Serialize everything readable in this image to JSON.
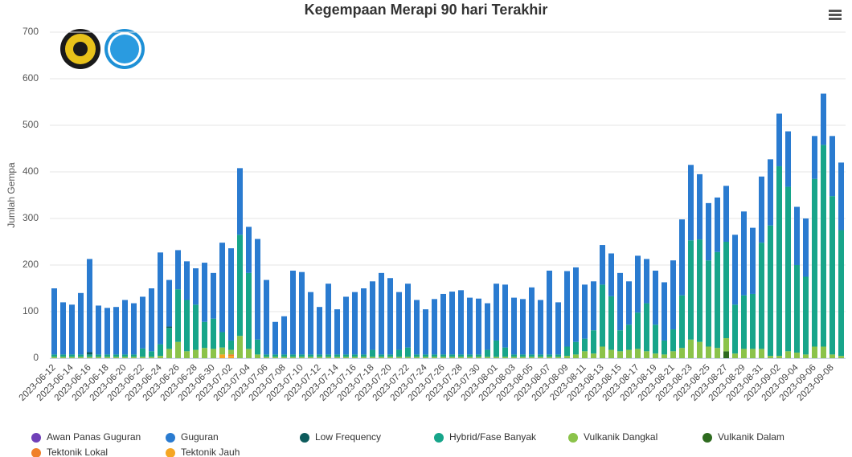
{
  "chart_data": {
    "type": "stacked-bar",
    "title": "Kegempaan Merapi 90 hari Terakhir",
    "y_label": "Jumlah Gempa",
    "ylim": [
      0,
      700
    ],
    "yticks": [
      0,
      100,
      200,
      300,
      400,
      500,
      600,
      700
    ],
    "grid": true,
    "categories": [
      "2023-06-12",
      null,
      "2023-06-14",
      null,
      "2023-06-16",
      null,
      "2023-06-18",
      null,
      "2023-06-20",
      null,
      "2023-06-22",
      null,
      "2023-06-24",
      null,
      "2023-06-26",
      null,
      "2023-06-28",
      null,
      "2023-06-30",
      null,
      "2023-07-02",
      null,
      "2023-07-04",
      null,
      "2023-07-06",
      null,
      "2023-07-08",
      null,
      "2023-07-10",
      null,
      "2023-07-12",
      null,
      "2023-07-14",
      null,
      "2023-07-16",
      null,
      "2023-07-18",
      null,
      "2023-07-20",
      null,
      "2023-07-22",
      null,
      "2023-07-24",
      null,
      "2023-07-26",
      null,
      "2023-07-28",
      null,
      "2023-07-30",
      null,
      "2023-08-01",
      null,
      "2023-08-03",
      null,
      "2023-08-05",
      null,
      "2023-08-07",
      null,
      "2023-08-09",
      null,
      "2023-08-11",
      null,
      "2023-08-13",
      null,
      "2023-08-15",
      null,
      "2023-08-17",
      null,
      "2023-08-19",
      null,
      "2023-08-21",
      null,
      "2023-08-23",
      null,
      "2023-08-25",
      null,
      "2023-08-27",
      null,
      "2023-08-29",
      null,
      "2023-08-31",
      null,
      "2023-09-02",
      null,
      "2023-09-04",
      null,
      "2023-09-06",
      null,
      "2023-09-08",
      null
    ],
    "series": [
      {
        "name": "Awan Panas Guguran",
        "color": "#7040b8",
        "values": [
          0,
          0,
          0,
          0,
          0,
          0,
          0,
          0,
          0,
          0,
          0,
          0,
          0,
          0,
          0,
          0,
          0,
          0,
          0,
          0,
          0,
          0,
          0,
          0,
          0,
          0,
          0,
          0,
          0,
          0,
          0,
          0,
          0,
          0,
          0,
          0,
          0,
          0,
          0,
          0,
          0,
          0,
          0,
          0,
          0,
          0,
          0,
          0,
          0,
          0,
          0,
          0,
          0,
          0,
          0,
          0,
          0,
          0,
          0,
          0,
          0,
          0,
          0,
          0,
          0,
          0,
          0,
          0,
          0,
          0,
          0,
          0,
          0,
          0,
          0,
          0,
          0,
          0,
          0,
          0,
          0,
          0,
          0,
          0,
          0,
          0,
          0,
          0,
          0,
          0
        ]
      },
      {
        "name": "Guguran",
        "color": "#2a7bd0",
        "values": [
          142,
          112,
          107,
          132,
          200,
          105,
          100,
          102,
          117,
          110,
          111,
          135,
          197,
          100,
          84,
          83,
          78,
          127,
          98,
          192,
          198,
          143,
          99,
          216,
          160,
          70,
          82,
          180,
          177,
          134,
          102,
          152,
          97,
          124,
          134,
          142,
          147,
          175,
          164,
          124,
          137,
          117,
          97,
          119,
          130,
          135,
          138,
          122,
          120,
          100,
          122,
          135,
          122,
          119,
          144,
          117,
          180,
          112,
          162,
          160,
          116,
          105,
          85,
          92,
          123,
          93,
          122,
          95,
          116,
          125,
          148,
          163,
          162,
          140,
          123,
          117,
          120,
          150,
          180,
          142,
          142,
          142,
          113,
          119,
          125,
          125,
          92,
          110,
          129,
          145
        ]
      },
      {
        "name": "Low Frequency",
        "color": "#0d5b5c",
        "values": [
          0,
          0,
          0,
          0,
          5,
          0,
          0,
          0,
          0,
          0,
          0,
          0,
          0,
          3,
          0,
          0,
          0,
          0,
          0,
          0,
          0,
          0,
          0,
          0,
          0,
          0,
          0,
          0,
          0,
          0,
          0,
          0,
          0,
          0,
          0,
          0,
          0,
          0,
          0,
          0,
          0,
          0,
          0,
          0,
          0,
          0,
          0,
          0,
          0,
          0,
          0,
          0,
          0,
          0,
          0,
          0,
          0,
          0,
          0,
          0,
          0,
          0,
          0,
          0,
          0,
          0,
          0,
          0,
          0,
          0,
          0,
          0,
          0,
          0,
          0,
          0,
          0,
          0,
          0,
          0,
          0,
          0,
          0,
          0,
          0,
          0,
          0,
          0,
          0,
          0
        ]
      },
      {
        "name": "Hybrid/Fase Banyak",
        "color": "#17a58a",
        "values": [
          5,
          5,
          5,
          5,
          5,
          5,
          5,
          5,
          5,
          5,
          18,
          12,
          25,
          45,
          113,
          110,
          97,
          56,
          65,
          33,
          20,
          217,
          163,
          32,
          5,
          5,
          5,
          5,
          5,
          5,
          5,
          5,
          5,
          5,
          5,
          5,
          15,
          5,
          5,
          15,
          20,
          5,
          5,
          5,
          5,
          5,
          5,
          5,
          5,
          15,
          35,
          20,
          5,
          5,
          5,
          5,
          5,
          5,
          20,
          27,
          27,
          50,
          133,
          115,
          45,
          54,
          78,
          103,
          62,
          30,
          47,
          113,
          213,
          220,
          185,
          206,
          207,
          105,
          115,
          118,
          228,
          280,
          407,
          353,
          188,
          167,
          360,
          433,
          340,
          270
        ]
      },
      {
        "name": "Vulkanik Dangkal",
        "color": "#8bc34a",
        "values": [
          3,
          3,
          3,
          3,
          3,
          3,
          3,
          3,
          3,
          3,
          3,
          3,
          5,
          20,
          35,
          15,
          18,
          22,
          20,
          15,
          10,
          48,
          20,
          8,
          3,
          3,
          3,
          3,
          3,
          3,
          3,
          3,
          3,
          3,
          3,
          3,
          3,
          3,
          3,
          3,
          3,
          3,
          3,
          3,
          3,
          3,
          3,
          3,
          3,
          3,
          3,
          3,
          3,
          3,
          3,
          3,
          3,
          3,
          5,
          8,
          15,
          10,
          25,
          18,
          15,
          18,
          20,
          15,
          10,
          8,
          15,
          22,
          40,
          35,
          25,
          22,
          28,
          10,
          20,
          20,
          20,
          5,
          5,
          15,
          12,
          8,
          25,
          25,
          8,
          5
        ]
      },
      {
        "name": "Vulkanik Dalam",
        "color": "#2e6b1f",
        "values": [
          0,
          0,
          0,
          0,
          0,
          0,
          0,
          0,
          0,
          0,
          0,
          0,
          0,
          0,
          0,
          0,
          0,
          0,
          0,
          0,
          0,
          0,
          0,
          0,
          0,
          0,
          0,
          0,
          0,
          0,
          0,
          0,
          0,
          0,
          0,
          0,
          0,
          0,
          0,
          0,
          0,
          0,
          0,
          0,
          0,
          0,
          0,
          0,
          0,
          0,
          0,
          0,
          0,
          0,
          0,
          0,
          0,
          0,
          0,
          0,
          0,
          0,
          0,
          0,
          0,
          0,
          0,
          0,
          0,
          0,
          0,
          0,
          0,
          0,
          0,
          0,
          15,
          0,
          0,
          0,
          0,
          0,
          0,
          0,
          0,
          0,
          0,
          0,
          0,
          0
        ]
      },
      {
        "name": "Tektonik Lokal",
        "color": "#f0802a",
        "values": [
          0,
          0,
          0,
          0,
          0,
          0,
          0,
          0,
          0,
          0,
          0,
          0,
          0,
          0,
          0,
          0,
          0,
          0,
          0,
          0,
          3,
          0,
          0,
          0,
          0,
          0,
          0,
          0,
          0,
          0,
          0,
          0,
          0,
          0,
          0,
          0,
          0,
          0,
          0,
          0,
          0,
          0,
          0,
          0,
          0,
          0,
          0,
          0,
          0,
          0,
          0,
          0,
          0,
          0,
          0,
          0,
          0,
          0,
          0,
          0,
          0,
          0,
          0,
          0,
          0,
          0,
          0,
          0,
          0,
          0,
          0,
          0,
          0,
          0,
          0,
          0,
          0,
          0,
          0,
          0,
          0,
          0,
          0,
          0,
          0,
          0,
          0,
          0,
          0,
          0
        ]
      },
      {
        "name": "Tektonik Jauh",
        "color": "#f5a623",
        "values": [
          0,
          0,
          0,
          0,
          0,
          0,
          0,
          0,
          0,
          0,
          0,
          0,
          0,
          0,
          0,
          0,
          0,
          0,
          0,
          8,
          5,
          0,
          0,
          0,
          0,
          0,
          0,
          0,
          0,
          0,
          0,
          0,
          0,
          0,
          0,
          0,
          0,
          0,
          0,
          0,
          0,
          0,
          0,
          0,
          0,
          0,
          0,
          0,
          0,
          0,
          0,
          0,
          0,
          0,
          0,
          0,
          0,
          0,
          0,
          0,
          0,
          0,
          0,
          0,
          0,
          0,
          0,
          0,
          0,
          0,
          0,
          0,
          0,
          0,
          0,
          0,
          0,
          0,
          0,
          0,
          0,
          0,
          0,
          0,
          0,
          0,
          0,
          0,
          0,
          0
        ]
      }
    ]
  }
}
